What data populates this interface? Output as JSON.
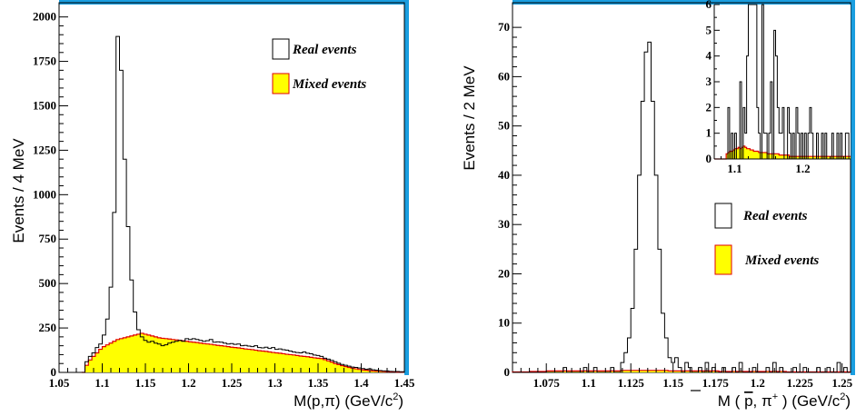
{
  "chart_data": [
    {
      "type": "histogram",
      "xlabel_main": "M(p,π)",
      "xlabel_unit": "(GeV/c",
      "xlabel_sup": "2",
      "xlabel_close": ")",
      "ylabel": "Events  /  4 MeV",
      "xlim": [
        1.05,
        1.45
      ],
      "ylim": [
        0,
        2080
      ],
      "x_ticks": [
        "1.05",
        "1.1",
        "1.15",
        "1.2",
        "1.25",
        "1.3",
        "1.35",
        "1.4",
        "1.45"
      ],
      "y_ticks": [
        "0",
        "250",
        "500",
        "750",
        "1000",
        "1250",
        "1500",
        "1750",
        "2000"
      ],
      "legend": [
        {
          "label": "Real events",
          "style": "open"
        },
        {
          "label": "Mixed events",
          "style": "filled"
        }
      ],
      "bin_width": 0.004,
      "bin_start": 1.076,
      "series": [
        {
          "name": "Real events",
          "values": [
            0,
            60,
            90,
            110,
            140,
            160,
            210,
            300,
            480,
            900,
            1890,
            1700,
            1200,
            820,
            520,
            340,
            240,
            200,
            180,
            170,
            175,
            165,
            160,
            150,
            155,
            165,
            170,
            175,
            180,
            175,
            190,
            185,
            190,
            185,
            180,
            175,
            178,
            185,
            170,
            172,
            170,
            165,
            160,
            162,
            158,
            160,
            150,
            152,
            148,
            145,
            150,
            140,
            138,
            142,
            135,
            140,
            130,
            132,
            128,
            125,
            120,
            115,
            112,
            110,
            115,
            108,
            105,
            98,
            95,
            90,
            80,
            75,
            68,
            60,
            52,
            45,
            40,
            35,
            30,
            28,
            25,
            22,
            18,
            20,
            15,
            12,
            10,
            8,
            8,
            6,
            5,
            5,
            4,
            4
          ]
        },
        {
          "name": "Mixed events",
          "values": [
            0,
            40,
            70,
            90,
            110,
            130,
            145,
            155,
            165,
            175,
            185,
            190,
            195,
            200,
            205,
            210,
            215,
            220,
            215,
            210,
            205,
            200,
            195,
            192,
            190,
            188,
            185,
            183,
            180,
            178,
            175,
            172,
            170,
            168,
            165,
            162,
            160,
            158,
            155,
            152,
            150,
            148,
            145,
            142,
            140,
            138,
            135,
            132,
            130,
            128,
            125,
            122,
            120,
            118,
            115,
            112,
            110,
            108,
            105,
            102,
            100,
            98,
            95,
            92,
            90,
            88,
            85,
            82,
            80,
            78,
            72,
            65,
            58,
            50,
            44,
            38,
            33,
            28,
            24,
            20,
            17,
            14,
            12,
            10,
            8,
            7,
            6,
            5,
            4,
            3,
            3,
            2,
            2,
            2
          ]
        }
      ]
    },
    {
      "type": "histogram",
      "xlabel_main": "M (",
      "xlabel_p": "p",
      "xlabel_mid": ", π",
      "xlabel_pi_sup": "+",
      "xlabel_close": ")",
      "xlabel_unit": "(GeV/c",
      "xlabel_sup": "2",
      "xlabel_unit_close": ")",
      "ylabel": "Events  /  2 MeV",
      "xlim": [
        1.055,
        1.255
      ],
      "ylim": [
        0,
        75
      ],
      "x_ticks": [
        "1.075",
        "1.1",
        "1.125",
        "1.15",
        "1.175",
        "1.2",
        "1.225",
        "1.25"
      ],
      "y_ticks": [
        "0",
        "10",
        "20",
        "30",
        "40",
        "50",
        "60",
        "70"
      ],
      "legend": [
        {
          "label": "Real events",
          "style": "open"
        },
        {
          "label": "Mixed events",
          "style": "filled"
        }
      ],
      "bin_width": 0.002,
      "bin_start": 1.055,
      "series": [
        {
          "name": "Real events",
          "values": [
            0,
            0,
            0,
            0,
            0,
            0,
            0,
            0,
            0,
            0,
            0,
            0,
            0,
            0,
            0,
            1,
            0,
            0,
            0,
            0,
            0,
            1,
            0,
            0,
            1,
            0,
            0,
            0,
            0,
            1,
            0,
            0,
            2,
            4,
            7,
            13,
            25,
            40,
            55,
            65,
            67,
            55,
            40,
            25,
            12,
            7,
            3,
            2,
            3,
            1,
            0,
            2,
            1,
            0,
            0,
            1,
            0,
            2,
            0,
            1,
            0,
            0,
            1,
            0,
            0,
            1,
            0,
            2,
            0,
            0,
            0,
            1,
            0,
            0,
            0,
            1,
            0,
            2,
            0,
            1,
            0,
            0,
            0,
            1,
            0,
            0,
            1,
            0,
            0,
            0,
            1,
            0,
            0,
            1,
            0,
            0,
            2,
            0,
            1,
            0
          ]
        },
        {
          "name": "Mixed events",
          "values": [
            0.1,
            0.1,
            0.1,
            0.1,
            0.1,
            0.2,
            0.2,
            0.2,
            0.2,
            0.2,
            0.3,
            0.3,
            0.3,
            0.3,
            0.3,
            0.3,
            0.3,
            0.3,
            0.3,
            0.3,
            0.3,
            0.3,
            0.3,
            0.3,
            0.3,
            0.3,
            0.3,
            0.3,
            0.3,
            0.3,
            0.3,
            0.3,
            0.4,
            0.4,
            0.4,
            0.4,
            0.4,
            0.4,
            0.4,
            0.4,
            0.4,
            0.4,
            0.4,
            0.4,
            0.4,
            0.4,
            0.3,
            0.3,
            0.3,
            0.3,
            0.3,
            0.3,
            0.3,
            0.3,
            0.3,
            0.3,
            0.3,
            0.3,
            0.3,
            0.3,
            0.3,
            0.2,
            0.2,
            0.2,
            0.2,
            0.2,
            0.2,
            0.2,
            0.2,
            0.2,
            0.2,
            0.2,
            0.2,
            0.2,
            0.2,
            0.2,
            0.2,
            0.2,
            0.2,
            0.2,
            0.2,
            0.1,
            0.1,
            0.1,
            0.1,
            0.1,
            0.1,
            0.1,
            0.1,
            0.1,
            0.1,
            0.1,
            0.1,
            0.1,
            0.1,
            0.1,
            0.1,
            0.1,
            0.1,
            0.1
          ]
        }
      ],
      "inset": {
        "xlim": [
          1.07,
          1.27
        ],
        "ylim": [
          0,
          6
        ],
        "x_ticks": [
          "1.1",
          "1.2"
        ],
        "y_ticks": [
          "0",
          "1",
          "2",
          "3",
          "4",
          "5",
          "6"
        ],
        "bin_width": 0.0025,
        "bin_start": 1.07,
        "series": [
          {
            "name": "Real events",
            "values": [
              0,
              0,
              0,
              0,
              0,
              0,
              0,
              0,
              2,
              0,
              1,
              0,
              1,
              0,
              0,
              3,
              0,
              2,
              1,
              4,
              6,
              6,
              6,
              6,
              6,
              2,
              1,
              0,
              6,
              1,
              1,
              0,
              1,
              3,
              0,
              5,
              4,
              2,
              1,
              1,
              2,
              0,
              0,
              2,
              1,
              0,
              1,
              0,
              2,
              1,
              0,
              1,
              0,
              1,
              0,
              1,
              2,
              1,
              0,
              0,
              1,
              0,
              0,
              1,
              0,
              1,
              0,
              0,
              0,
              1,
              0,
              0,
              1,
              0,
              1,
              0,
              0,
              1,
              1,
              0
            ]
          },
          {
            "name": "Mixed events",
            "values": [
              0,
              0,
              0,
              0,
              0,
              0,
              0,
              0.2,
              0.25,
              0.3,
              0.3,
              0.35,
              0.4,
              0.4,
              0.45,
              0.4,
              0.45,
              0.5,
              0.45,
              0.4,
              0.4,
              0.35,
              0.35,
              0.3,
              0.3,
              0.3,
              0.25,
              0.25,
              0.25,
              0.25,
              0.25,
              0.2,
              0.2,
              0.2,
              0.2,
              0.2,
              0.2,
              0.2,
              0.15,
              0.15,
              0.15,
              0.15,
              0.15,
              0.15,
              0.1,
              0.1,
              0.1,
              0.1,
              0.1,
              0.1,
              0.1,
              0.1,
              0.1,
              0.1,
              0.1,
              0.1,
              0.1,
              0.1,
              0.1,
              0.1,
              0.1,
              0.1,
              0.1,
              0.1,
              0.1,
              0.1,
              0.1,
              0.1,
              0.1,
              0.1,
              0.1,
              0.1,
              0.1,
              0.1,
              0.1,
              0.1,
              0.1,
              0.1,
              0.1,
              0.1
            ]
          }
        ]
      }
    }
  ],
  "colors": {
    "frame_shadow": "#1a9ee0",
    "fill": "#ffff00",
    "fill_line": "#e00000",
    "line": "#000000",
    "axis": "#000000"
  }
}
